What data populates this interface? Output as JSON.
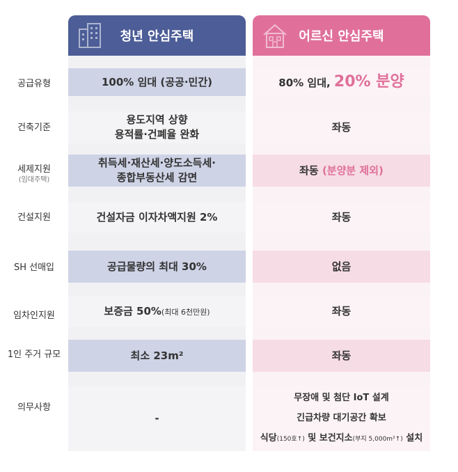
{
  "header": {
    "left_title": "청년 안심주택",
    "right_title": "어르신 안심주택",
    "left_icon": "building-icon",
    "right_icon": "house-icon",
    "left_color": "#4c5d97",
    "right_color": "#e0709a"
  },
  "rows": [
    {
      "label": "공급유형",
      "label_sub": "",
      "left": {
        "text": "100% 임대 (공공·민간)"
      },
      "right": {
        "part1": "80% 임대, ",
        "part2": "20% 분양"
      }
    },
    {
      "label": "건축기준",
      "label_sub": "",
      "left": {
        "line1": "용도지역 상향",
        "line2": "용적률·건폐율 완화"
      },
      "right": {
        "text": "좌동"
      }
    },
    {
      "label": "세제지원",
      "label_sub": "(임대주택)",
      "left": {
        "line1": "취득세·재산세·양도소득세·",
        "line2": "종합부동산세 감면"
      },
      "right": {
        "part1": "좌동 ",
        "part2": "(분양분 제외)"
      }
    },
    {
      "label": "건설지원",
      "label_sub": "",
      "left": {
        "text": "건설자금 이자차액지원 2%"
      },
      "right": {
        "text": "좌동"
      }
    },
    {
      "label": "SH 선매입",
      "label_sub": "",
      "left": {
        "text": "공급물량의 최대 30%"
      },
      "right": {
        "text": "없음"
      }
    },
    {
      "label": "임차인지원",
      "label_sub": "",
      "left": {
        "main": "보증금 50%",
        "small": "(최대 6천만원)"
      },
      "right": {
        "text": "좌동"
      }
    },
    {
      "label": "1인 주거 규모",
      "label_sub": "",
      "left": {
        "text": "최소 23m²"
      },
      "right": {
        "text": "좌동"
      }
    },
    {
      "label": "의무사항",
      "label_sub": "",
      "left": {
        "text": "-"
      },
      "right": {
        "line1": "무장애 및 첨단 IoT 설계",
        "line2": "긴급차량 대기공간 확보",
        "line3_a": "식당",
        "line3_b": "(150호↑)",
        "line3_c": " 및 보건지소",
        "line3_d": "(부지 5,000m²↑)",
        "line3_e": " 설치"
      }
    }
  ]
}
